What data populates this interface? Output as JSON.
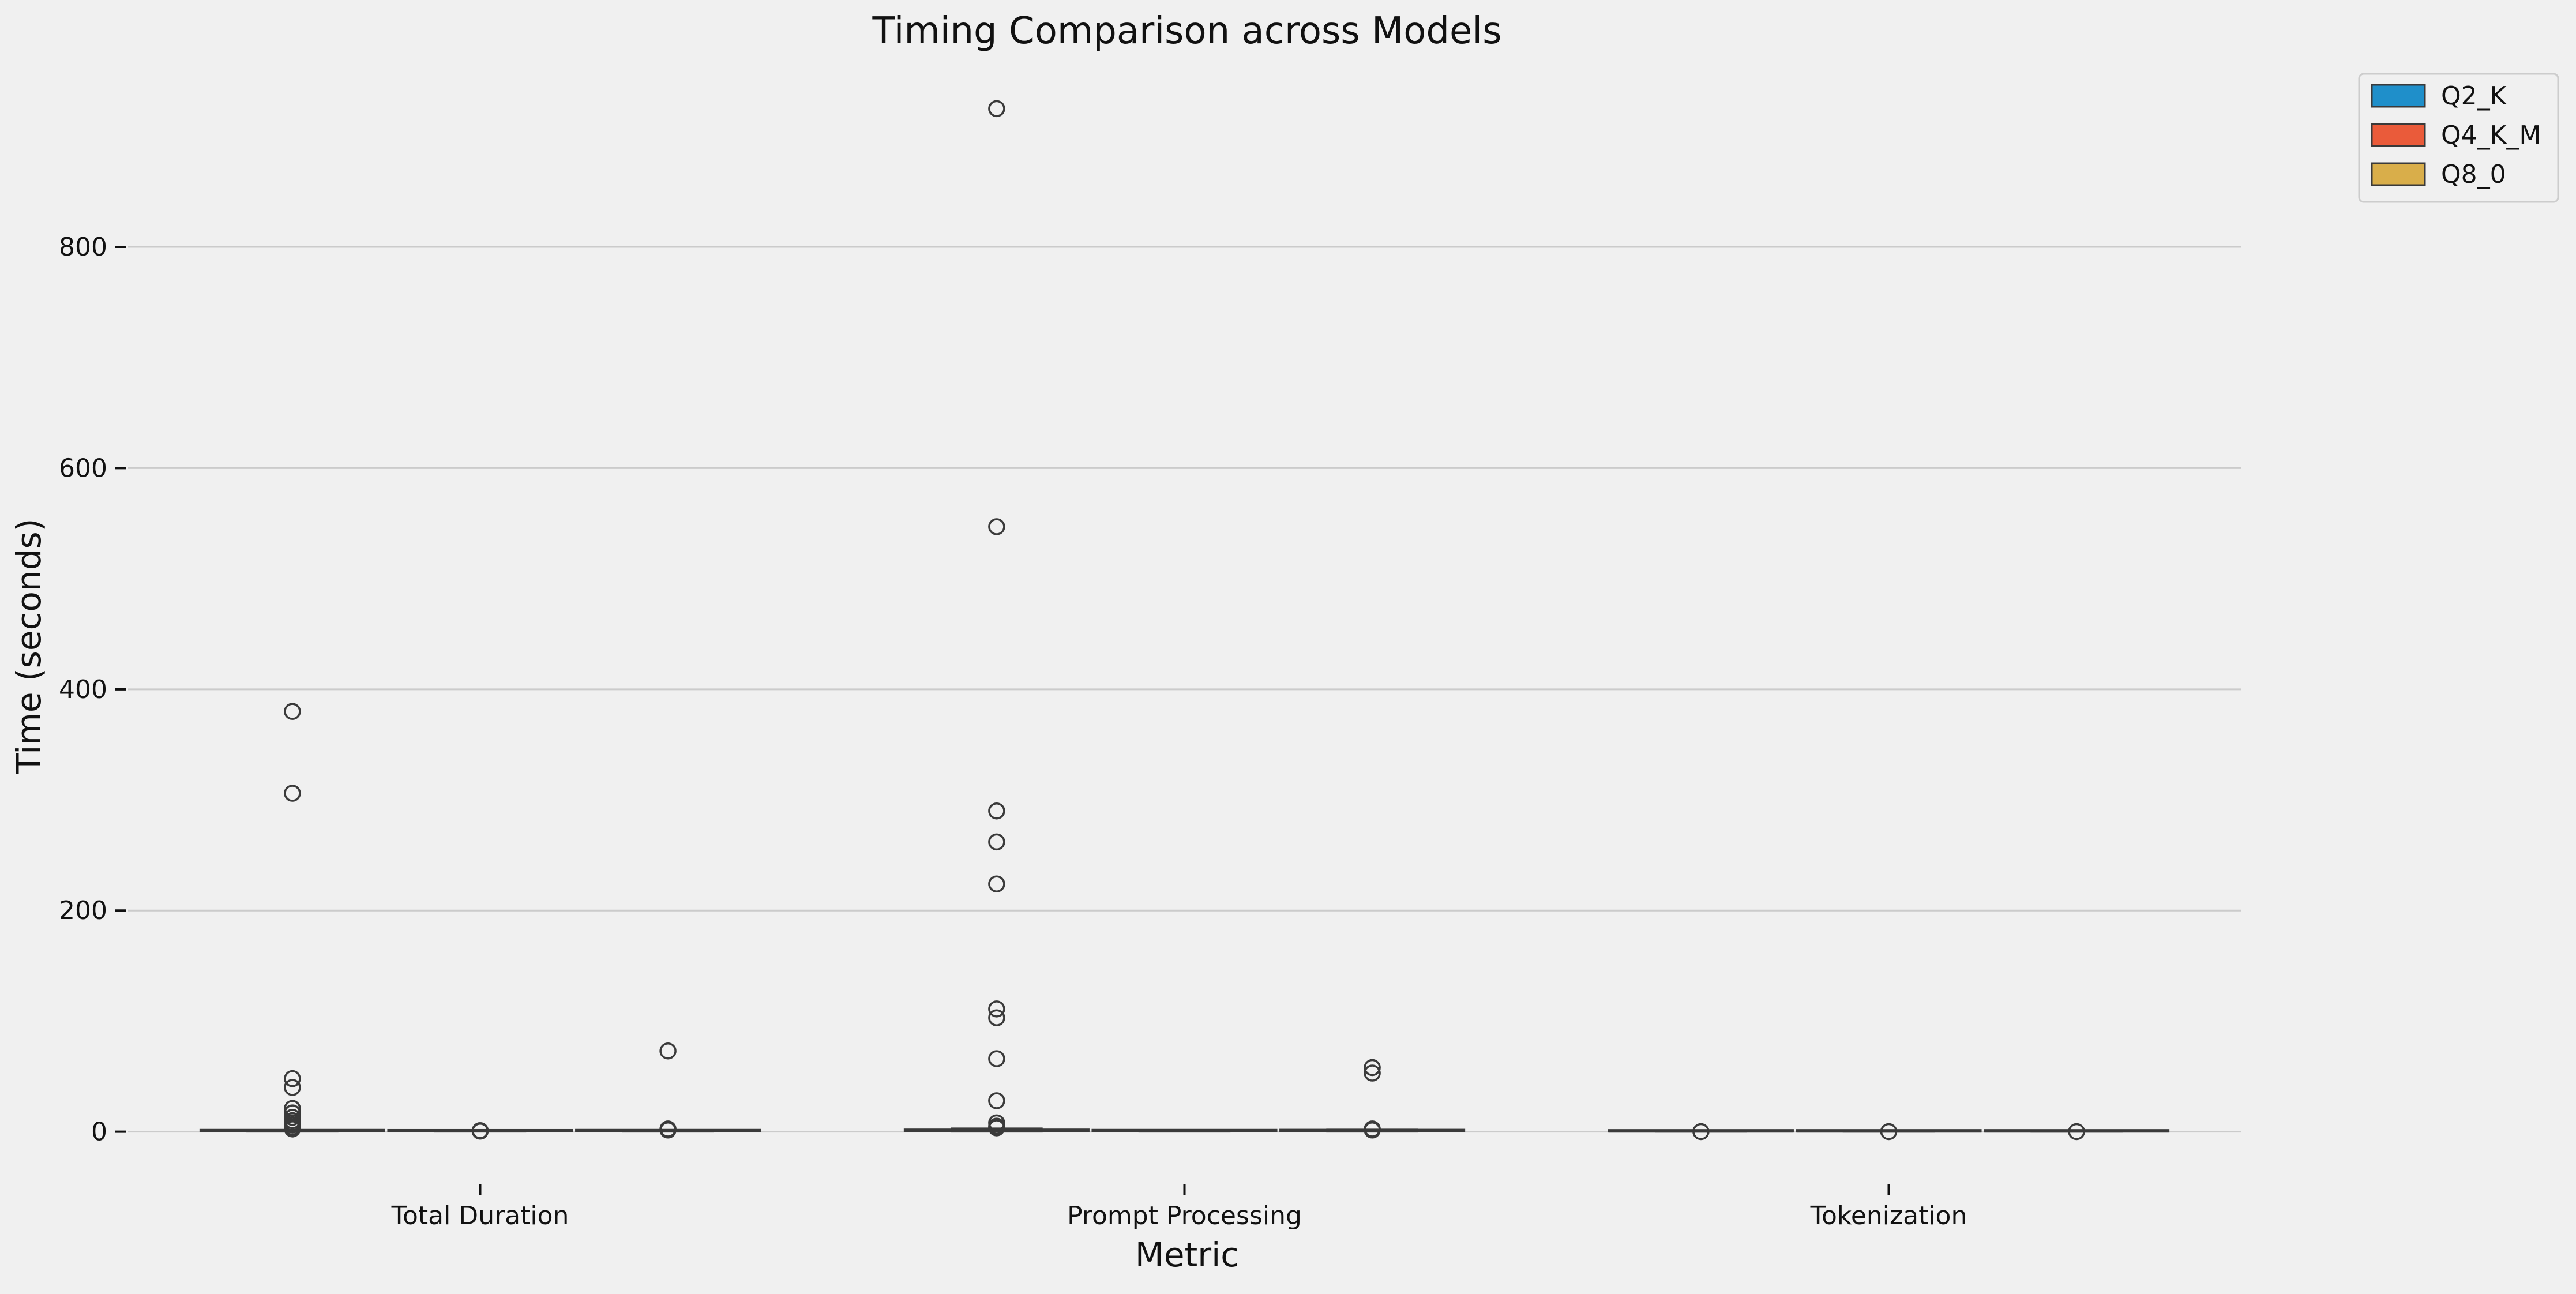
{
  "chart_data": {
    "type": "box",
    "title": "Timing Comparison across Models",
    "xlabel": "Metric",
    "ylabel": "Time (seconds)",
    "ylim": [
      -20,
      945
    ],
    "yticks": [
      0,
      200,
      400,
      600,
      800
    ],
    "grid": "horizontal",
    "legend_position": "top-right, outside plot",
    "categories": [
      "Total Duration",
      "Prompt Processing",
      "Tokenization"
    ],
    "series": [
      {
        "name": "Q2_K",
        "color": "#1f8fca",
        "boxes": [
          {
            "category": "Total Duration",
            "q1": 0.2,
            "median": 0.5,
            "q3": 1.0,
            "whisker_low": 0.0,
            "whisker_high": 1.5,
            "outliers": [
              380,
              306,
              48,
              40,
              21,
              17,
              13,
              10,
              8,
              6,
              4,
              2.5
            ]
          },
          {
            "category": "Prompt Processing",
            "q1": 0.5,
            "median": 1.2,
            "q3": 2.0,
            "whisker_low": 0.0,
            "whisker_high": 3.0,
            "outliers": [
              925,
              547,
              290,
              262,
              224,
              111,
              103,
              66,
              28,
              8,
              5,
              3.5
            ]
          },
          {
            "category": "Tokenization",
            "q1": 0.0,
            "median": 0.01,
            "q3": 0.02,
            "whisker_low": 0.0,
            "whisker_high": 0.03,
            "outliers": [
              0.1
            ]
          }
        ]
      },
      {
        "name": "Q4_K_M",
        "color": "#ea5b3a",
        "boxes": [
          {
            "category": "Total Duration",
            "q1": 0.1,
            "median": 0.3,
            "q3": 0.5,
            "whisker_low": 0.0,
            "whisker_high": 0.8,
            "outliers": [
              1.0,
              0.5
            ]
          },
          {
            "category": "Prompt Processing",
            "q1": 0.2,
            "median": 0.6,
            "q3": 1.0,
            "whisker_low": 0.0,
            "whisker_high": 1.5,
            "outliers": []
          },
          {
            "category": "Tokenization",
            "q1": 0.0,
            "median": 0.01,
            "q3": 0.02,
            "whisker_low": 0.0,
            "whisker_high": 0.03,
            "outliers": [
              0.1
            ]
          }
        ]
      },
      {
        "name": "Q8_0",
        "color": "#d9ae4a",
        "boxes": [
          {
            "category": "Total Duration",
            "q1": 0.2,
            "median": 0.5,
            "q3": 0.9,
            "whisker_low": 0.0,
            "whisker_high": 1.4,
            "outliers": [
              73,
              2.5,
              1.5
            ]
          },
          {
            "category": "Prompt Processing",
            "q1": 0.3,
            "median": 0.8,
            "q3": 1.5,
            "whisker_low": 0.0,
            "whisker_high": 2.0,
            "outliers": [
              58,
              53,
              2.5,
              1.5
            ]
          },
          {
            "category": "Tokenization",
            "q1": 0.0,
            "median": 0.01,
            "q3": 0.02,
            "whisker_low": 0.0,
            "whisker_high": 0.03,
            "outliers": [
              0.1
            ]
          }
        ]
      }
    ]
  }
}
